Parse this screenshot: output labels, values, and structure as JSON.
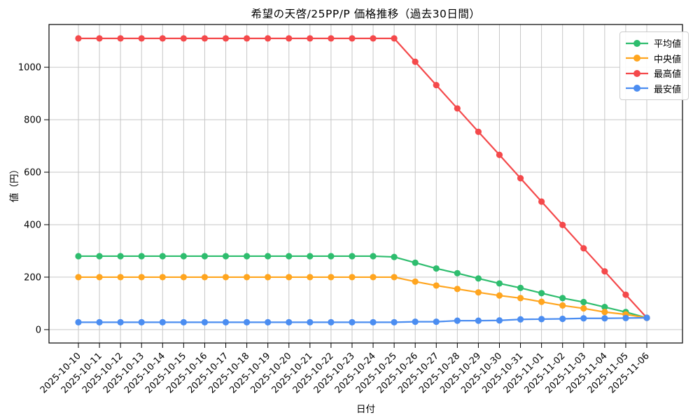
{
  "chart_data": {
    "type": "line",
    "title": "希望の天啓/25PP/P 価格推移（過去30日間）",
    "xlabel": "日付",
    "ylabel": "値（円）",
    "x": [
      "2025-10-10",
      "2025-10-11",
      "2025-10-12",
      "2025-10-13",
      "2025-10-14",
      "2025-10-15",
      "2025-10-16",
      "2025-10-17",
      "2025-10-18",
      "2025-10-19",
      "2025-10-20",
      "2025-10-21",
      "2025-10-22",
      "2025-10-23",
      "2025-10-24",
      "2025-10-25",
      "2025-10-26",
      "2025-10-27",
      "2025-10-28",
      "2025-10-29",
      "2025-10-30",
      "2025-10-31",
      "2025-11-01",
      "2025-11-02",
      "2025-11-03",
      "2025-11-04",
      "2025-11-05",
      "2025-11-06"
    ],
    "series": [
      {
        "key": "average",
        "name": "平均値",
        "color": "#2ebd6e",
        "values": [
          280,
          280,
          280,
          280,
          280,
          280,
          280,
          280,
          280,
          280,
          280,
          280,
          280,
          280,
          280,
          277,
          255,
          233,
          215,
          195,
          176,
          159,
          139,
          120,
          105,
          86,
          67,
          45
        ]
      },
      {
        "key": "median",
        "name": "中央値",
        "color": "#ffa51f",
        "values": [
          200,
          200,
          200,
          200,
          200,
          200,
          200,
          200,
          200,
          200,
          200,
          200,
          200,
          200,
          200,
          200,
          183,
          168,
          155,
          142,
          130,
          120,
          106,
          92,
          81,
          67,
          58,
          45
        ]
      },
      {
        "key": "max",
        "name": "最高値",
        "color": "#f4494b",
        "values": [
          1110,
          1110,
          1110,
          1110,
          1110,
          1110,
          1110,
          1110,
          1110,
          1110,
          1110,
          1110,
          1110,
          1110,
          1110,
          1110,
          1021,
          932,
          843,
          754,
          666,
          577,
          488,
          399,
          310,
          222,
          133,
          45
        ]
      },
      {
        "key": "min",
        "name": "最安値",
        "color": "#4b8df1",
        "values": [
          28,
          28,
          28,
          28,
          28,
          28,
          28,
          28,
          28,
          28,
          28,
          28,
          28,
          28,
          28,
          28,
          30,
          30,
          34,
          34,
          35,
          39,
          40,
          41,
          43,
          43,
          44,
          45
        ]
      }
    ],
    "yticks": [
      0,
      200,
      400,
      600,
      800,
      1000
    ],
    "ylim": [
      -51,
      1163
    ],
    "grid": true,
    "legend_position": "upper right",
    "grid_color": "#c6c6c6",
    "spine_color": "#000000",
    "background_color": "#ffffff"
  }
}
